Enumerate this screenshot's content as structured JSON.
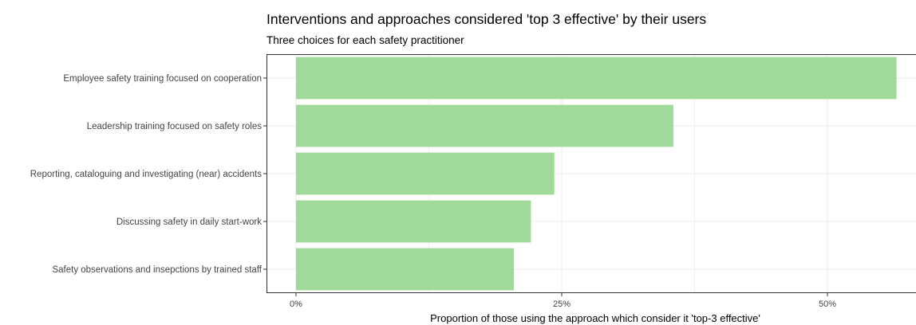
{
  "chart_data": {
    "type": "bar",
    "orientation": "horizontal",
    "title": "Interventions and approaches considered 'top 3 effective' by their users",
    "subtitle": "Three choices for each safety practitioner",
    "categories": [
      "Employee safety training focused on cooperation",
      "Leadership training focused on safety roles",
      "Reporting, cataloguing and investigating (near) accidents",
      "Discussing safety in daily start-work",
      "Safety observations and insepctions by trained staff"
    ],
    "values": [
      0.565,
      0.355,
      0.243,
      0.221,
      0.205
    ],
    "xlabel": "Proportion of those using the approach which consider it 'top-3 effective'",
    "ylabel": "",
    "xlim": [
      0,
      0.58
    ],
    "xticks": [
      0,
      0.25,
      0.5
    ],
    "xtick_labels": [
      "0%",
      "25%",
      "50%"
    ],
    "bar_color": "#a1d99b",
    "grid": true
  }
}
